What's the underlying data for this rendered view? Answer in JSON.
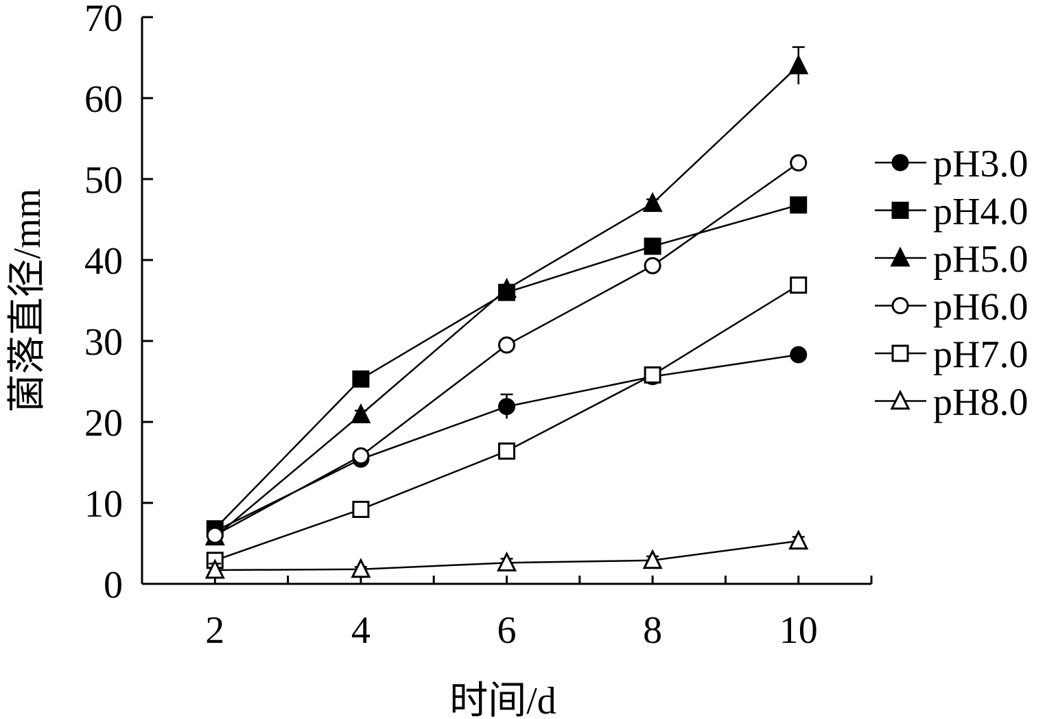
{
  "chart_data": {
    "type": "line",
    "title": "",
    "xlabel": "时间/d",
    "ylabel": "菌落直径/mm",
    "xlim": [
      1,
      11
    ],
    "ylim": [
      0,
      70
    ],
    "x": [
      2,
      4,
      6,
      8,
      10
    ],
    "xticks": [
      "2",
      "4",
      "6",
      "8",
      "10"
    ],
    "yticks": [
      "0",
      "10",
      "20",
      "30",
      "40",
      "50",
      "60",
      "70"
    ],
    "legend_position": "right",
    "series": [
      {
        "name": "pH3.0",
        "marker": "circle-filled",
        "values": [
          6.5,
          15.4,
          21.9,
          25.6,
          28.3
        ],
        "errors": [
          0.5,
          0.5,
          1.5,
          0.5,
          0.5
        ]
      },
      {
        "name": "pH4.0",
        "marker": "square-filled",
        "values": [
          6.8,
          25.3,
          36.0,
          41.7,
          46.8
        ],
        "errors": [
          0.5,
          0.5,
          0.5,
          0.5,
          0.5
        ]
      },
      {
        "name": "pH5.0",
        "marker": "triangle-filled",
        "values": [
          5.8,
          20.9,
          36.4,
          47.0,
          64.0
        ],
        "errors": [
          0.5,
          0.5,
          0.5,
          0.5,
          2.3
        ]
      },
      {
        "name": "pH6.0",
        "marker": "circle-open",
        "values": [
          6.0,
          15.8,
          29.5,
          39.3,
          52.0
        ],
        "errors": [
          0.3,
          0.3,
          0.5,
          0.5,
          0.5
        ]
      },
      {
        "name": "pH7.0",
        "marker": "square-open",
        "values": [
          2.9,
          9.2,
          16.4,
          25.8,
          36.9
        ],
        "errors": [
          0.3,
          0.5,
          0.5,
          0.5,
          0.5
        ]
      },
      {
        "name": "pH8.0",
        "marker": "triangle-open",
        "values": [
          1.7,
          1.8,
          2.6,
          2.9,
          5.3
        ],
        "errors": [
          0.8,
          0.3,
          0.5,
          0.5,
          0.5
        ]
      }
    ]
  }
}
